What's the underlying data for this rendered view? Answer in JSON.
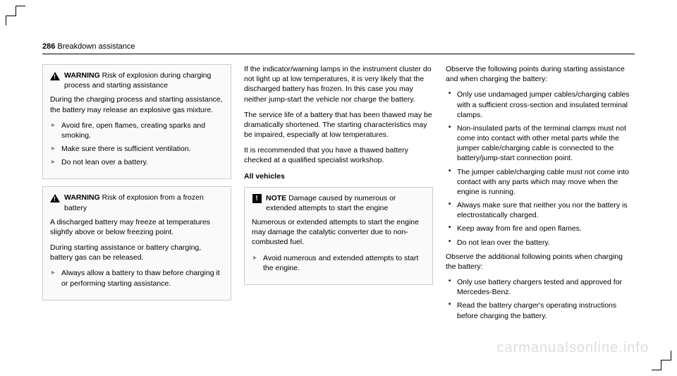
{
  "page": {
    "number": "286",
    "section": "Breakdown assistance"
  },
  "col1": {
    "warn1": {
      "label": "WARNING",
      "title": "Risk of explosion during charging process and starting assistance",
      "p1": "During the charging process and starting assistance, the battery may release an explosive gas mixture.",
      "b1": "Avoid fire, open flames, creating sparks and smoking.",
      "b2": "Make sure there is sufficient ventilation.",
      "b3": "Do not lean over a battery."
    },
    "warn2": {
      "label": "WARNING",
      "title": "Risk of explosion from a frozen battery",
      "p1": "A discharged battery may freeze at temperatures slightly above or below freezing point.",
      "p2": "During starting assistance or battery charging, battery gas can be released.",
      "b1": "Always allow a battery to thaw before charging it or performing starting assistance."
    }
  },
  "col2": {
    "p1": "If the indicator/warning lamps in the instrument cluster do not light up at low temperatures, it is very likely that the discharged battery has frozen. In this case you may neither jump-start the vehicle nor charge the battery.",
    "p2": "The service life of a battery that has been thawed may be dramatically shortened. The starting characteristics may be impaired, especially at low temperatures.",
    "p3": "It is recommended that you have a thawed battery checked at a qualified specialist workshop.",
    "sub": "All vehicles",
    "note": {
      "label": "NOTE",
      "title": "Damage caused by numerous or extended attempts to start the engine",
      "p1": "Numerous or extended attempts to start the engine may damage the catalytic converter due to non-combusted fuel.",
      "b1": "Avoid numerous and extended attempts to start the engine."
    }
  },
  "col3": {
    "p1": "Observe the following points during starting assistance and when charging the battery:",
    "l1": "Only use undamaged jumper cables/charging cables with a sufficient cross-section and insulated terminal clamps.",
    "l2": "Non-insulated parts of the terminal clamps must not come into contact with other metal parts while the jumper cable/charging cable is connected to the battery/jump-start connection point.",
    "l3": "The jumper cable/charging cable must not come into contact with any parts which may move when the engine is running.",
    "l4": "Always make sure that neither you nor the battery is electrostatically charged.",
    "l5": "Keep away from fire and open flames.",
    "l6": "Do not lean over the battery.",
    "p2": "Observe the additional following points when charging the battery:",
    "l7": "Only use battery chargers tested and approved for Mercedes-Benz.",
    "l8": "Read the battery charger's operating instructions before charging the battery."
  },
  "watermark": "carmanualsonline.info"
}
